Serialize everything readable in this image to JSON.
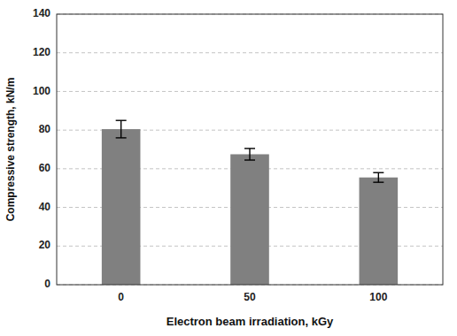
{
  "chart_data": {
    "type": "bar",
    "categories": [
      "0",
      "50",
      "100"
    ],
    "values": [
      80.5,
      67.5,
      55.5
    ],
    "errors": [
      4.5,
      3.0,
      2.5
    ],
    "color": "#808080",
    "xlabel": "Electron beam irradiation, kGy",
    "ylabel": "Compressive strength, kN/m",
    "ylim": [
      0,
      140
    ],
    "yticks": [
      0,
      20,
      40,
      60,
      80,
      100,
      120,
      140
    ],
    "grid": true
  }
}
